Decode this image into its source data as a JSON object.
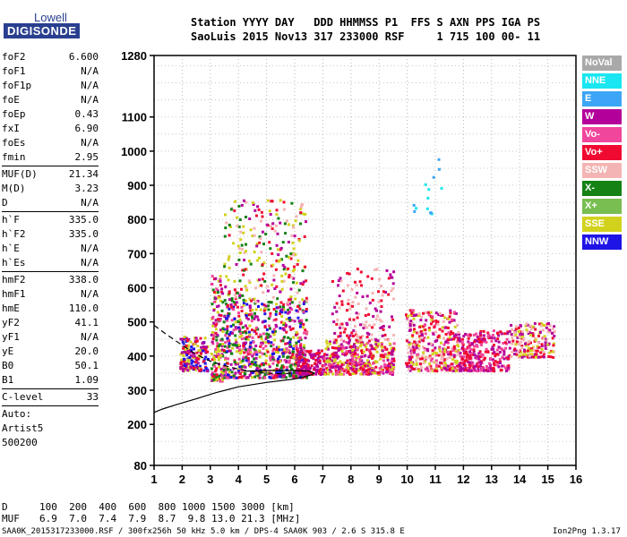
{
  "logo": {
    "brand": "Lowell",
    "product": "DIGISONDE"
  },
  "header": {
    "line1": "Station YYYY DAY   DDD HHMMSS P1  FFS S AXN PPS IGA PS",
    "line2": "SaoLuis 2015 Nov13 317 233000 RSF     1 715 100 00- 11"
  },
  "params": [
    {
      "label": "foF2",
      "value": "6.600"
    },
    {
      "label": "foF1",
      "value": "N/A"
    },
    {
      "label": "foF1p",
      "value": "N/A"
    },
    {
      "label": "foE",
      "value": "N/A"
    },
    {
      "label": "foEp",
      "value": "0.43"
    },
    {
      "label": "fxI",
      "value": "6.90"
    },
    {
      "label": "foEs",
      "value": "N/A"
    },
    {
      "label": "fmin",
      "value": "2.95"
    },
    {
      "sep": true
    },
    {
      "label": "MUF(D)",
      "value": "21.34"
    },
    {
      "label": "M(D)",
      "value": "3.23"
    },
    {
      "label": "D",
      "value": "N/A"
    },
    {
      "sep": true
    },
    {
      "label": "h`F",
      "value": "335.0"
    },
    {
      "label": "h`F2",
      "value": "335.0"
    },
    {
      "label": "h`E",
      "value": "N/A"
    },
    {
      "label": "h`Es",
      "value": "N/A"
    },
    {
      "sep": true
    },
    {
      "label": "hmF2",
      "value": "338.0"
    },
    {
      "label": "hmF1",
      "value": "N/A"
    },
    {
      "label": "hmE",
      "value": "110.0"
    },
    {
      "label": "yF2",
      "value": "41.1"
    },
    {
      "label": "yF1",
      "value": "N/A"
    },
    {
      "label": "yE",
      "value": "20.0"
    },
    {
      "label": "B0",
      "value": "50.1"
    },
    {
      "label": "B1",
      "value": "1.09"
    },
    {
      "sep": true
    },
    {
      "label": "C-level",
      "value": "33"
    },
    {
      "sep": true
    },
    {
      "text": "Auto:"
    },
    {
      "text": "Artist5"
    },
    {
      "text": "500200"
    }
  ],
  "legend": [
    {
      "label": "NoVal",
      "color": "#a9a9a9"
    },
    {
      "label": "NNE",
      "color": "#19e6f0"
    },
    {
      "label": "E",
      "color": "#3ca5f5"
    },
    {
      "label": "W",
      "color": "#b4009b"
    },
    {
      "label": "Vo-",
      "color": "#f0469b"
    },
    {
      "label": "Vo+",
      "color": "#f00a32"
    },
    {
      "label": "SSW",
      "color": "#f5b4b4"
    },
    {
      "label": "X-",
      "color": "#148214"
    },
    {
      "label": "X+",
      "color": "#78be50"
    },
    {
      "label": "SSE",
      "color": "#d2d21e"
    },
    {
      "label": "NNW",
      "color": "#1e14e6"
    }
  ],
  "chart_data": {
    "type": "scatter",
    "title": "",
    "xlabel": "",
    "ylabel": "",
    "xlim": [
      1,
      16
    ],
    "ylim": [
      80,
      1280
    ],
    "x_ticks": [
      1,
      2,
      3,
      4,
      5,
      6,
      7,
      8,
      9,
      10,
      11,
      12,
      13,
      14,
      15,
      16
    ],
    "y_ticks": [
      80,
      200,
      300,
      400,
      500,
      600,
      700,
      800,
      900,
      1000,
      1100,
      1280
    ],
    "grid": "dotted",
    "clusters": [
      {
        "x": [
          1.9,
          2.9
        ],
        "y": [
          360,
          460
        ],
        "count": 170,
        "colors": [
          "#f00a32",
          "#b4009b",
          "#d2d21e",
          "#1e14e6"
        ]
      },
      {
        "x": [
          3.0,
          3.4
        ],
        "y": [
          330,
          640
        ],
        "count": 150,
        "colors": [
          "#f00a32",
          "#d2d21e",
          "#b4009b",
          "#148214",
          "#f0469b"
        ]
      },
      {
        "x": [
          3.4,
          6.4
        ],
        "y": [
          340,
          560
        ],
        "count": 700,
        "colors": [
          "#f00a32",
          "#d2d21e",
          "#b4009b",
          "#f0469b",
          "#1e14e6",
          "#148214"
        ]
      },
      {
        "x": [
          3.4,
          6.4
        ],
        "y": [
          560,
          860
        ],
        "count": 260,
        "colors": [
          "#d2d21e",
          "#f00a32",
          "#148214",
          "#f5b4b4",
          "#b4009b"
        ]
      },
      {
        "x": [
          6.0,
          7.0
        ],
        "y": [
          350,
          420
        ],
        "count": 140,
        "colors": [
          "#f00a32",
          "#b4009b"
        ]
      },
      {
        "x": [
          7.0,
          9.5
        ],
        "y": [
          350,
          450
        ],
        "count": 420,
        "colors": [
          "#f00a32",
          "#b4009b",
          "#d2d21e",
          "#f0469b"
        ]
      },
      {
        "x": [
          7.3,
          9.5
        ],
        "y": [
          450,
          660
        ],
        "count": 140,
        "colors": [
          "#f00a32",
          "#b4009b",
          "#f5b4b4"
        ]
      },
      {
        "x": [
          9.9,
          11.8
        ],
        "y": [
          360,
          540
        ],
        "count": 360,
        "colors": [
          "#f00a32",
          "#d2d21e",
          "#f0469b",
          "#b4009b",
          "#f5b4b4"
        ]
      },
      {
        "x": [
          11.8,
          13.6
        ],
        "y": [
          360,
          480
        ],
        "count": 280,
        "colors": [
          "#f00a32",
          "#b4009b",
          "#f0469b"
        ]
      },
      {
        "x": [
          13.6,
          15.2
        ],
        "y": [
          400,
          500
        ],
        "count": 180,
        "colors": [
          "#d2d21e",
          "#f00a32",
          "#b4009b",
          "#f5b4b4"
        ]
      },
      {
        "x": [
          10.1,
          11.2
        ],
        "y": [
          820,
          980
        ],
        "count": 14,
        "colors": [
          "#19e6f0",
          "#3ca5f5"
        ]
      }
    ],
    "traces": {
      "solid": [
        [
          1,
          235
        ],
        [
          1.3,
          245
        ],
        [
          1.8,
          258
        ],
        [
          2.5,
          275
        ],
        [
          3.2,
          293
        ],
        [
          4,
          310
        ],
        [
          5,
          323
        ],
        [
          6,
          333
        ],
        [
          6.6,
          345
        ],
        [
          6.7,
          350
        ],
        [
          6.5,
          356
        ],
        [
          6.0,
          358
        ],
        [
          5.0,
          358
        ],
        [
          4.2,
          356
        ]
      ],
      "dashed": [
        [
          1,
          490
        ],
        [
          1.5,
          460
        ],
        [
          2.0,
          432
        ],
        [
          2.5,
          405
        ],
        [
          3.0,
          385
        ],
        [
          3.5,
          372
        ],
        [
          4.0,
          362
        ],
        [
          4.5,
          355
        ],
        [
          5.0,
          350
        ],
        [
          5.5,
          348
        ],
        [
          6.0,
          350
        ]
      ]
    }
  },
  "bottom": {
    "d_label": "D",
    "d_values": "100  200  400  600  800 1000 1500 3000 [km]",
    "muf_label": "MUF",
    "muf_values": "6.9  7.0  7.4  7.9  8.7  9.8 13.0 21.3 [MHz]"
  },
  "footer": {
    "left": "SAA0K_2015317233000.RSF / 300fx256h 50 kHz 5.0 km / DPS-4 SAA0K 903 / 2.6 S 315.8 E",
    "right": "Ion2Png 1.3.17"
  }
}
